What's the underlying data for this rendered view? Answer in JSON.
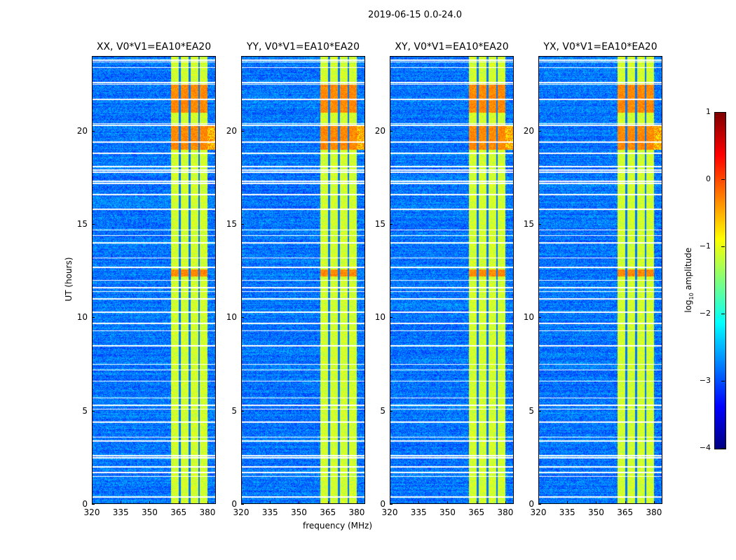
{
  "chart_data": {
    "type": "heatmap",
    "suptitle": "2019-06-15 0.0-24.0",
    "xlabel": "frequency (MHz)",
    "ylabel": "UT (hours)",
    "xlim": [
      320,
      384.4
    ],
    "ylim": [
      0,
      24
    ],
    "xticks": [
      "320",
      "335",
      "350",
      "365",
      "380"
    ],
    "yticks": [
      "0",
      "5",
      "10",
      "15",
      "20"
    ],
    "panels": [
      {
        "title": "XX, V0*V1=EA10*EA20"
      },
      {
        "title": "YY, V0*V1=EA10*EA20"
      },
      {
        "title": "XY, V0*V1=EA10*EA20"
      },
      {
        "title": "YX, V0*V1=EA10*EA20"
      }
    ],
    "colorbar": {
      "label": "log10 amplitude",
      "label_main": "log",
      "label_sub": "10",
      "label_rest": " amplitude",
      "colormap": "jet",
      "clim": [
        -4,
        1
      ],
      "ticks": [
        "1",
        "0",
        "−1",
        "−2",
        "−3",
        "−4"
      ]
    },
    "features": {
      "background_log_amp": -2.8,
      "rfi_band_mhz": [
        361,
        380
      ],
      "rfi_band_log_amp": -1.1,
      "rfi_band_gaps_mhz": [
        365.5,
        370.5,
        375.5
      ],
      "strong_rfi_hours": [
        [
          19.0,
          20.3
        ],
        [
          12.2,
          12.6
        ],
        [
          21.0,
          22.5
        ]
      ],
      "flagged_hours": [
        0.4,
        1.5,
        1.7,
        2.0,
        2.5,
        2.6,
        3.4,
        3.6,
        4.4,
        5.1,
        5.3,
        5.7,
        6.6,
        7.2,
        7.5,
        8.5,
        9.3,
        9.7,
        10.3,
        11.0,
        11.4,
        11.6,
        12.0,
        12.7,
        13.2,
        14.0,
        14.4,
        14.7,
        15.8,
        16.6,
        17.2,
        17.3,
        17.8,
        17.9,
        18.1,
        18.8,
        19.4,
        20.3,
        20.4,
        21.7,
        22.5,
        22.6,
        23.4,
        23.7,
        23.8
      ]
    }
  }
}
